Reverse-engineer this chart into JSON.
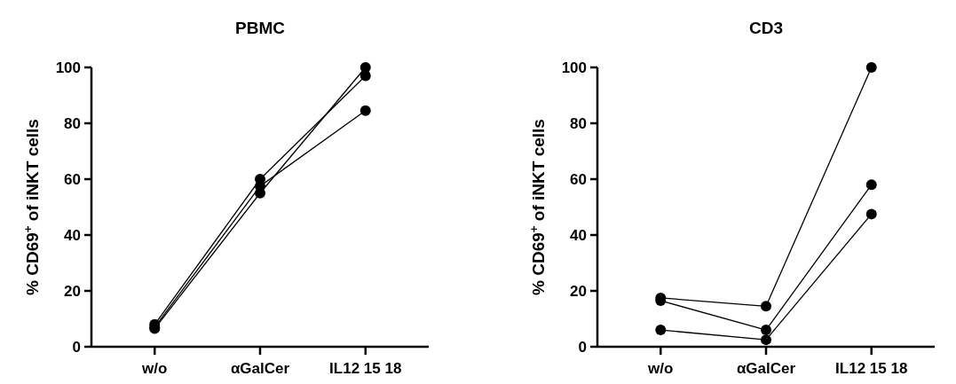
{
  "chart_data": [
    {
      "type": "line",
      "title": "PBMC",
      "ylabel": "% CD69$^{+}$ of iNKT cells",
      "categories": [
        "w/o",
        "αGalCer",
        "IL12 15 18"
      ],
      "marker": "circle",
      "ylim": [
        0,
        100
      ],
      "yticks": [
        0,
        20,
        40,
        60,
        80,
        100
      ],
      "series": [
        {
          "color": "#000000",
          "values": [
            8,
            60,
            97
          ]
        },
        {
          "color": "#000000",
          "values": [
            7,
            57.5,
            84.5
          ]
        },
        {
          "color": "#000000",
          "values": [
            6.5,
            55,
            100
          ]
        }
      ]
    },
    {
      "type": "line",
      "title": "CD3",
      "ylabel": "% CD69$^{+}$ of iNKT cells",
      "categories": [
        "w/o",
        "αGalCer",
        "IL12 15 18"
      ],
      "marker": "circle",
      "ylim": [
        0,
        100
      ],
      "yticks": [
        0,
        20,
        40,
        60,
        80,
        100
      ],
      "series": [
        {
          "color": "#000000",
          "values": [
            17.5,
            14.5,
            100
          ]
        },
        {
          "color": "#000000",
          "values": [
            16.5,
            6,
            58
          ]
        },
        {
          "color": "#000000",
          "values": [
            6,
            2.5,
            47.5
          ]
        }
      ]
    }
  ]
}
